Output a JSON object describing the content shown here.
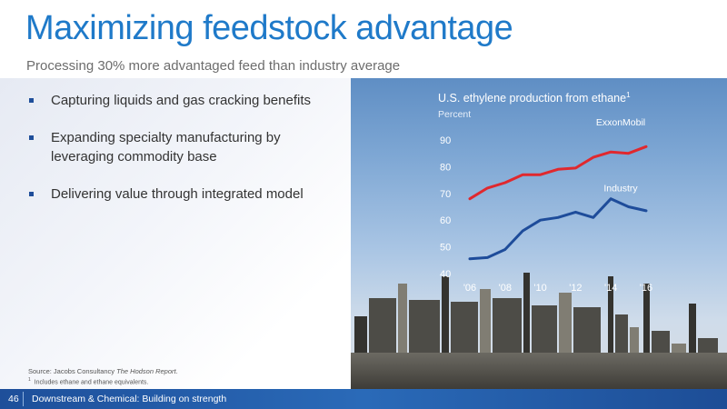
{
  "slide": {
    "title": "Maximizing feedstock advantage",
    "subtitle": "Processing 30% more advantaged feed than industry average",
    "bullets": [
      "Capturing liquids and gas cracking benefits",
      "Expanding specialty manufacturing by leveraging commodity base",
      "Delivering value through integrated model"
    ],
    "source_prefix": "Source: Jacobs Consultancy ",
    "source_title": "The Hodson Report",
    "source_suffix": ".",
    "footnote_marker": "1",
    "footnote_text": "Includes ethane and ethane equivalents.",
    "page_number": "46",
    "footer_text": "Downstream & Chemical:  Building on strength"
  },
  "colors": {
    "title": "#1F7AC9",
    "exxonmobil_line": "#E0282E",
    "industry_line": "#1E4C9A",
    "footer_bar": "#1E4F9A"
  },
  "chart_data": {
    "type": "line",
    "title": "U.S. ethylene production from ethane",
    "title_superscript": "1",
    "ylabel": "Percent",
    "ylim": [
      40,
      95
    ],
    "yticks": [
      40,
      50,
      60,
      70,
      80,
      90
    ],
    "x": [
      2006,
      2007,
      2008,
      2009,
      2010,
      2011,
      2012,
      2013,
      2014,
      2015,
      2016
    ],
    "xticks": [
      2006,
      2008,
      2010,
      2012,
      2014,
      2016
    ],
    "xtick_labels": [
      "'06",
      "'08",
      "'10",
      "'12",
      "'14",
      "'16"
    ],
    "grid": false,
    "series": [
      {
        "name": "ExxonMobil",
        "values": [
          68,
          72,
          74,
          77,
          77,
          79,
          79.5,
          83.5,
          85.5,
          85,
          87.5
        ]
      },
      {
        "name": "Industry",
        "values": [
          45.5,
          46,
          49,
          56,
          60,
          61,
          63,
          61,
          68,
          65,
          63.5
        ]
      }
    ]
  }
}
